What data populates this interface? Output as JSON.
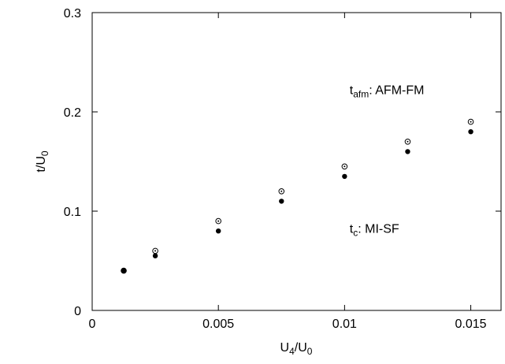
{
  "chart_data": {
    "type": "scatter",
    "xlabel": {
      "main": "U",
      "sub": "4",
      "sep": "/U",
      "sub2": "0"
    },
    "ylabel": {
      "main": "t/U",
      "sub": "0"
    },
    "xlim": [
      0,
      0.0162
    ],
    "ylim": [
      0,
      0.3
    ],
    "xticks": [
      0,
      0.005,
      0.01,
      0.015
    ],
    "xtick_labels": [
      "0",
      "0.005",
      "0.01",
      "0.015"
    ],
    "yticks": [
      0,
      0.1,
      0.2,
      0.3
    ],
    "ytick_labels": [
      "0",
      "0.1",
      "0.2",
      "0.3"
    ],
    "grid": false,
    "series": [
      {
        "marker": "filled-circle",
        "points": [
          [
            0.00125,
            0.04
          ],
          [
            0.0025,
            0.055
          ],
          [
            0.005,
            0.08
          ],
          [
            0.0075,
            0.11
          ],
          [
            0.01,
            0.135
          ],
          [
            0.0125,
            0.16
          ],
          [
            0.015,
            0.18
          ]
        ]
      },
      {
        "marker": "open-dot-circle",
        "points": [
          [
            0.00125,
            0.04
          ],
          [
            0.0025,
            0.06
          ],
          [
            0.005,
            0.09
          ],
          [
            0.0075,
            0.12
          ],
          [
            0.01,
            0.145
          ],
          [
            0.0125,
            0.17
          ],
          [
            0.015,
            0.19
          ]
        ]
      }
    ],
    "annotations": [
      {
        "main": "t",
        "sub": "afm",
        "rest": ": AFM-FM",
        "x": 0.0102,
        "y": 0.218
      },
      {
        "main": "t",
        "sub": "c",
        "rest": ": MI-SF",
        "x": 0.0102,
        "y": 0.078
      }
    ]
  }
}
